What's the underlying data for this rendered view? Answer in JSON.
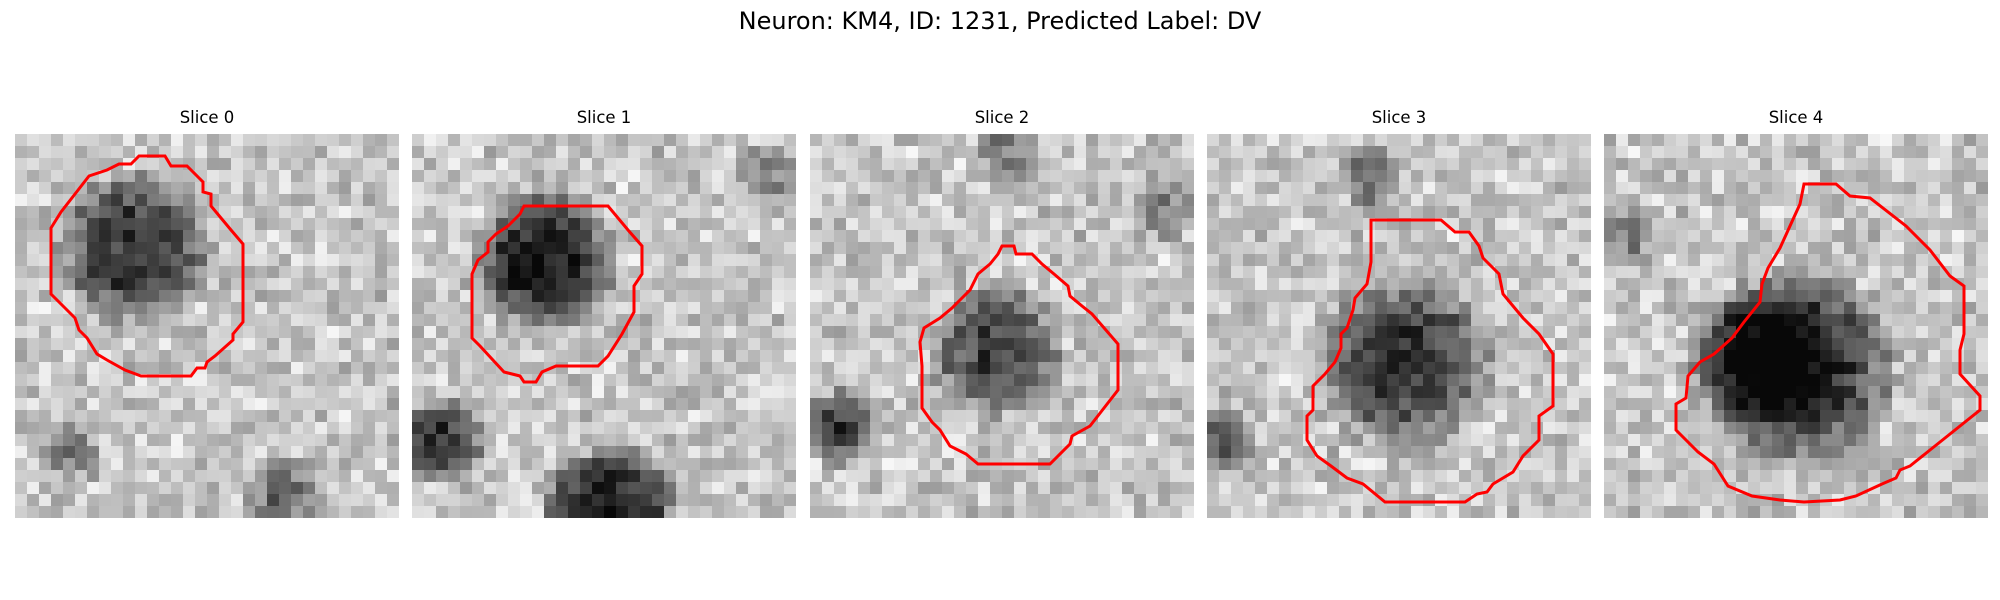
{
  "title": "Neuron: KM4, ID: 1231, Predicted Label: DV",
  "panels": [
    {
      "title": "Slice 0"
    },
    {
      "title": "Slice 1"
    },
    {
      "title": "Slice 2"
    },
    {
      "title": "Slice 3"
    },
    {
      "title": "Slice 4"
    }
  ],
  "colors": {
    "contour": "#ff0000",
    "colormap": "grayscale"
  }
}
